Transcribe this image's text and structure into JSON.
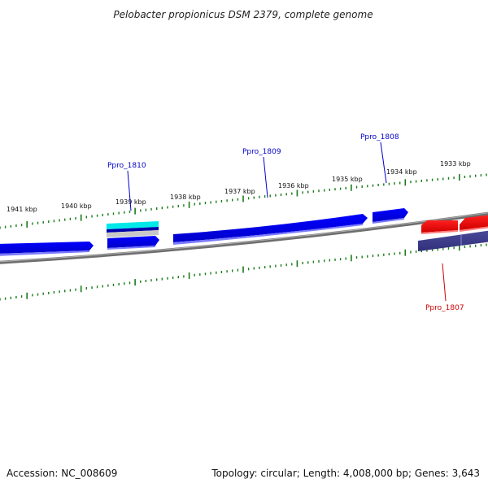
{
  "title": "Pelobacter propionicus DSM 2379, complete genome",
  "footer": {
    "accession": "Accession: NC_008609",
    "summary": "Topology: circular; Length: 4,008,000 bp; Genes: 3,643"
  },
  "colors": {
    "forward_gene": "#0000ee",
    "reverse_gene": "#ee0000",
    "reverse_feature": "#3d3d8f",
    "rna_feature": "#00e5e5",
    "backbone": "#808080",
    "tick": "#1a7a1a",
    "forward_label": "#0000cc",
    "reverse_label": "#cc0000"
  },
  "ruler": {
    "unit": "kbp",
    "labels": [
      "1941 kbp",
      "1940 kbp",
      "1939 kbp",
      "1938 kbp",
      "1937 kbp",
      "1936 kbp",
      "1935 kbp",
      "1934 kbp",
      "1933 kbp"
    ]
  },
  "genes": [
    {
      "name": "Ppro_1810",
      "strand": "+"
    },
    {
      "name": "Ppro_1809",
      "strand": "+"
    },
    {
      "name": "Ppro_1808",
      "strand": "+"
    },
    {
      "name": "Ppro_1807",
      "strand": "-"
    }
  ]
}
